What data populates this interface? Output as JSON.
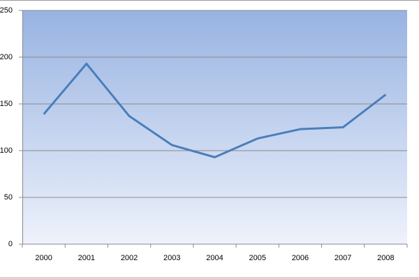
{
  "chart_data": {
    "type": "line",
    "categories": [
      "2000",
      "2001",
      "2002",
      "2003",
      "2004",
      "2005",
      "2006",
      "2007",
      "2008"
    ],
    "values": [
      139,
      193,
      137,
      106,
      93,
      113,
      123,
      125,
      160
    ],
    "color": "#4a7ebb",
    "ylim": [
      0,
      250
    ],
    "yticks": [
      0,
      50,
      100,
      150,
      200,
      250
    ],
    "grid": true
  }
}
